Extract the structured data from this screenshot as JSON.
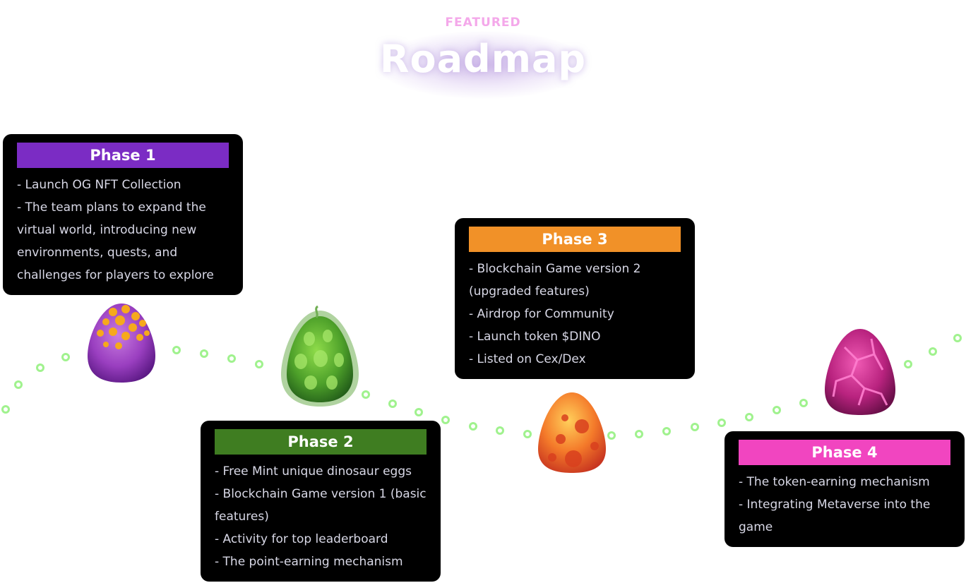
{
  "header": {
    "eyebrow": "FEATURED",
    "title": "Roadmap"
  },
  "colors": {
    "phase1": "#7b2cc4",
    "phase2": "#3f7d21",
    "phase3": "#f19128",
    "phase4": "#f145c0",
    "path_dot": "#8ff07a",
    "eyebrow": "#f4a8ea"
  },
  "phases": [
    {
      "label": "Phase 1",
      "egg_icon": "purple-spotted-egg-icon",
      "items": [
        "- Launch OG NFT Collection",
        "- The team plans to expand the virtual world, introducing new environments, quests, and challenges for players to explore"
      ]
    },
    {
      "label": "Phase 2",
      "egg_icon": "green-leafy-egg-icon",
      "items": [
        "- Free Mint unique dinosaur eggs",
        "- Blockchain Game version 1 (basic features)",
        "- Activity for top leaderboard",
        "- The point-earning mechanism"
      ]
    },
    {
      "label": "Phase 3",
      "egg_icon": "orange-spotted-egg-icon",
      "items": [
        "- Blockchain Game version 2 (upgraded features)",
        "- Airdrop for Community",
        "- Launch token $DINO",
        "- Listed on Cex/Dex"
      ]
    },
    {
      "label": "Phase 4",
      "egg_icon": "pink-cracked-egg-icon",
      "items": [
        "- The token-earning mechanism",
        "- Integrating Metaverse into the game"
      ]
    }
  ]
}
